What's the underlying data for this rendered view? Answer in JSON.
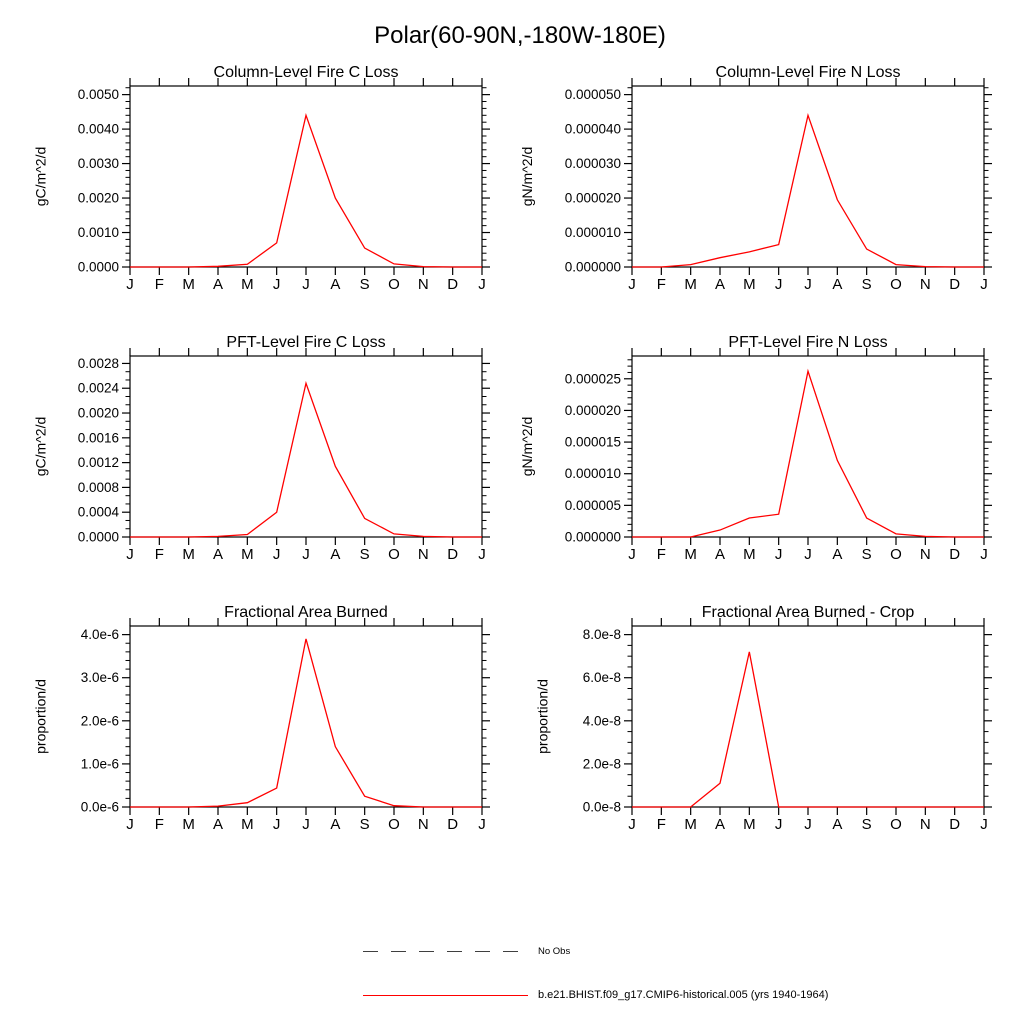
{
  "figure_title": "Polar(60-90N,-180W-180E)",
  "line_color": "#ff0000",
  "axis_color": "#000000",
  "legend": {
    "no_obs_label": "No Obs",
    "no_obs_color": "#3f3f3f",
    "dataset_label": "b.e21.BHIST.f09_g17.CMIP6-historical.005 (yrs 1940-1964)",
    "dataset_color": "#ff0000"
  },
  "months": [
    "J",
    "F",
    "M",
    "A",
    "M",
    "J",
    "J",
    "A",
    "S",
    "O",
    "N",
    "D",
    "J"
  ],
  "chart_data": [
    {
      "type": "line",
      "title": "Column-Level Fire C Loss",
      "ylabel": "gC/m^2/d",
      "xlabel": "",
      "categories": [
        "J",
        "F",
        "M",
        "A",
        "M",
        "J",
        "J",
        "A",
        "S",
        "O",
        "N",
        "D",
        "J"
      ],
      "values": [
        0,
        0,
        0,
        2e-05,
        8e-05,
        0.0007,
        0.0044,
        0.002,
        0.00055,
        9e-05,
        1e-05,
        0,
        0
      ],
      "ytick_labels": [
        "0.0000",
        "0.0010",
        "0.0020",
        "0.0030",
        "0.0040",
        "0.0050"
      ],
      "ytick_values": [
        0,
        0.001,
        0.002,
        0.003,
        0.004,
        0.005
      ],
      "ylim": [
        0,
        0.00525
      ],
      "minor_per_major": 4,
      "grid": false
    },
    {
      "type": "line",
      "title": "Column-Level Fire N Loss",
      "ylabel": "gN/m^2/d",
      "xlabel": "",
      "categories": [
        "J",
        "F",
        "M",
        "A",
        "M",
        "J",
        "J",
        "A",
        "S",
        "O",
        "N",
        "D",
        "J"
      ],
      "values": [
        0,
        0,
        7e-07,
        2.7e-06,
        4.4e-06,
        6.5e-06,
        4.4e-05,
        1.95e-05,
        5.2e-06,
        7e-07,
        1e-07,
        0,
        0
      ],
      "ytick_labels": [
        "0.000000",
        "0.000010",
        "0.000020",
        "0.000030",
        "0.000040",
        "0.000050"
      ],
      "ytick_values": [
        0,
        1e-05,
        2e-05,
        3e-05,
        4e-05,
        5e-05
      ],
      "ylim": [
        0,
        5.25e-05
      ],
      "minor_per_major": 4,
      "grid": false
    },
    {
      "type": "line",
      "title": "PFT-Level Fire C Loss",
      "ylabel": "gC/m^2/d",
      "xlabel": "",
      "categories": [
        "J",
        "F",
        "M",
        "A",
        "M",
        "J",
        "J",
        "A",
        "S",
        "O",
        "N",
        "D",
        "J"
      ],
      "values": [
        0,
        0,
        0,
        1e-05,
        4e-05,
        0.0004,
        0.00248,
        0.00114,
        0.0003,
        5e-05,
        1e-05,
        0,
        0
      ],
      "ytick_labels": [
        "0.0000",
        "0.0004",
        "0.0008",
        "0.0012",
        "0.0016",
        "0.0020",
        "0.0024",
        "0.0028"
      ],
      "ytick_values": [
        0,
        0.0004,
        0.0008,
        0.0012,
        0.0016,
        0.002,
        0.0024,
        0.0028
      ],
      "ylim": [
        0,
        0.00292
      ],
      "minor_per_major": 2,
      "grid": false
    },
    {
      "type": "line",
      "title": "PFT-Level Fire N Loss",
      "ylabel": "gN/m^2/d",
      "xlabel": "",
      "categories": [
        "J",
        "F",
        "M",
        "A",
        "M",
        "J",
        "J",
        "A",
        "S",
        "O",
        "N",
        "D",
        "J"
      ],
      "values": [
        0,
        0,
        0,
        1.1e-06,
        3e-06,
        3.6e-06,
        2.62e-05,
        1.21e-05,
        3e-06,
        5e-07,
        1e-07,
        0,
        0
      ],
      "ytick_labels": [
        "0.000000",
        "0.000005",
        "0.000010",
        "0.000015",
        "0.000020",
        "0.000025"
      ],
      "ytick_values": [
        0,
        5e-06,
        1e-05,
        1.5e-05,
        2e-05,
        2.5e-05
      ],
      "ylim": [
        0,
        2.86e-05
      ],
      "minor_per_major": 4,
      "grid": false
    },
    {
      "type": "line",
      "title": "Fractional Area Burned",
      "ylabel": "proportion/d",
      "xlabel": "",
      "categories": [
        "J",
        "F",
        "M",
        "A",
        "M",
        "J",
        "J",
        "A",
        "S",
        "O",
        "N",
        "D",
        "J"
      ],
      "values": [
        0,
        0,
        0,
        2e-08,
        1e-07,
        4.4e-07,
        3.9e-06,
        1.4e-06,
        2.5e-07,
        3e-08,
        0,
        0,
        0
      ],
      "ytick_labels": [
        "0.0e-6",
        "1.0e-6",
        "2.0e-6",
        "3.0e-6",
        "4.0e-6"
      ],
      "ytick_values": [
        0,
        1e-06,
        2e-06,
        3e-06,
        4e-06
      ],
      "ylim": [
        0,
        4.2e-06
      ],
      "minor_per_major": 4,
      "grid": false
    },
    {
      "type": "line",
      "title": "Fractional Area Burned - Crop",
      "ylabel": "proportion/d",
      "xlabel": "",
      "categories": [
        "J",
        "F",
        "M",
        "A",
        "M",
        "J",
        "J",
        "A",
        "S",
        "O",
        "N",
        "D",
        "J"
      ],
      "values": [
        0,
        0,
        0,
        1.1e-08,
        7.2e-08,
        0,
        0,
        0,
        0,
        0,
        0,
        0,
        0
      ],
      "ytick_labels": [
        "0.0e-8",
        "2.0e-8",
        "4.0e-8",
        "6.0e-8",
        "8.0e-8"
      ],
      "ytick_values": [
        0,
        2e-08,
        4e-08,
        6e-08,
        8e-08
      ],
      "ylim": [
        0,
        8.4e-08
      ],
      "minor_per_major": 3,
      "grid": false
    }
  ]
}
